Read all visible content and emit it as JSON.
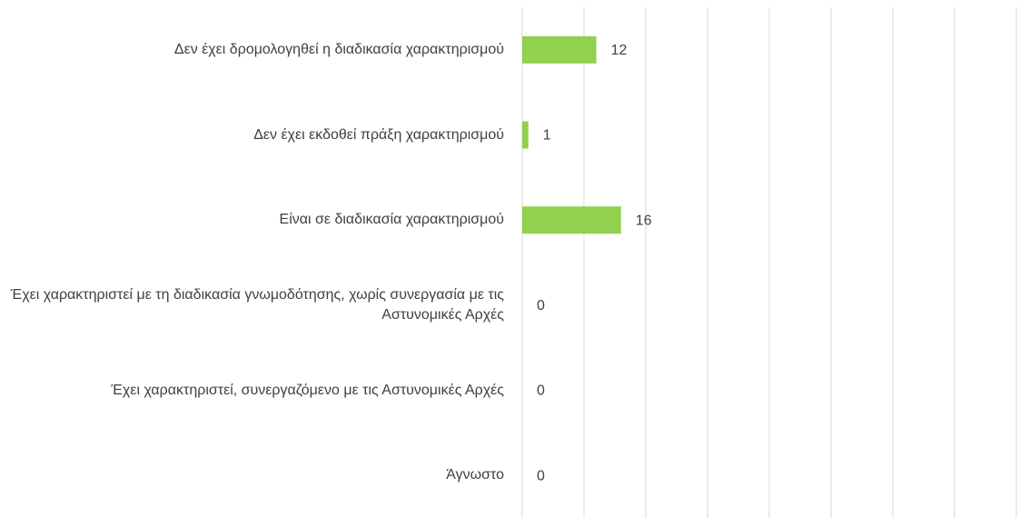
{
  "chart_data": {
    "type": "bar",
    "orientation": "horizontal",
    "categories": [
      "Δεν έχει δρομολογηθεί η διαδικασία χαρακτηρισμού",
      "Δεν έχει εκδοθεί πράξη χαρακτηρισμού",
      "Είναι σε διαδικασία χαρακτηρισμού",
      "Έχει χαρακτηριστεί με τη διαδικασία γνωμοδότησης, χωρίς συνεργασία με τις Αστυνομικές Αρχές",
      "Έχει χαρακτηριστεί, συνεργαζόμενο με τις Αστυνομικές Αρχές",
      "Άγνωστο"
    ],
    "values": [
      12,
      1,
      16,
      0,
      0,
      0
    ],
    "color": "#92d050",
    "xlim": [
      0,
      80
    ],
    "xticks": [
      0,
      10,
      20,
      30,
      40,
      50,
      60,
      70,
      80
    ],
    "grid": true
  }
}
